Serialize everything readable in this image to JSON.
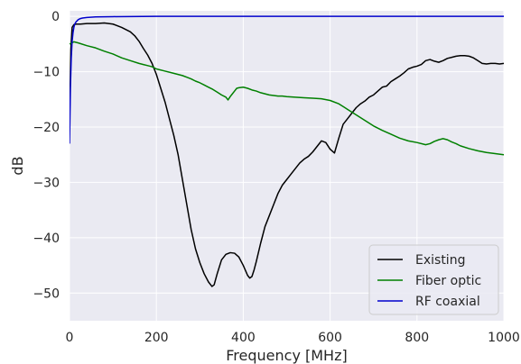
{
  "chart_data": {
    "type": "line",
    "title": "",
    "xlabel": "Frequency [MHz]",
    "ylabel": "dB",
    "xlim": [
      0,
      1000
    ],
    "ylim": [
      -55,
      1
    ],
    "xticks": [
      0,
      200,
      400,
      600,
      800,
      1000
    ],
    "yticks": [
      0,
      -10,
      -20,
      -30,
      -40,
      -50
    ],
    "xtick_labels": [
      "0",
      "200",
      "400",
      "600",
      "800",
      "1000"
    ],
    "ytick_labels": [
      "0",
      "−10",
      "−20",
      "−30",
      "−40",
      "−50"
    ],
    "grid": true,
    "legend_position": "lower-right",
    "series": [
      {
        "name": "Existing",
        "color": "#000000",
        "x": [
          0,
          3,
          6,
          10,
          15,
          25,
          40,
          60,
          80,
          100,
          120,
          140,
          150,
          160,
          170,
          180,
          190,
          200,
          210,
          220,
          230,
          240,
          250,
          260,
          270,
          280,
          290,
          300,
          310,
          320,
          328,
          333,
          340,
          350,
          360,
          370,
          380,
          390,
          400,
          410,
          415,
          420,
          425,
          430,
          440,
          450,
          460,
          470,
          480,
          490,
          500,
          510,
          520,
          530,
          540,
          550,
          560,
          570,
          580,
          590,
          600,
          610,
          620,
          630,
          640,
          650,
          660,
          670,
          680,
          690,
          700,
          710,
          720,
          730,
          740,
          750,
          760,
          770,
          780,
          790,
          800,
          810,
          820,
          830,
          840,
          850,
          860,
          870,
          880,
          890,
          900,
          910,
          920,
          930,
          940,
          950,
          960,
          970,
          980,
          990,
          1000
        ],
        "y": [
          -19,
          -6,
          -2,
          -1.5,
          -1.4,
          -1.4,
          -1.3,
          -1.3,
          -1.2,
          -1.4,
          -2,
          -2.8,
          -3.5,
          -4.5,
          -5.8,
          -7,
          -8.5,
          -10.5,
          -13,
          -15.5,
          -18.5,
          -21.5,
          -25,
          -29.5,
          -34,
          -38.5,
          -42,
          -44.5,
          -46.5,
          -48,
          -48.8,
          -48.5,
          -46.5,
          -44,
          -43,
          -42.7,
          -42.8,
          -43.5,
          -45,
          -46.8,
          -47.3,
          -47,
          -45.8,
          -44.3,
          -41,
          -38,
          -36,
          -34,
          -32,
          -30.5,
          -29.5,
          -28.5,
          -27.5,
          -26.5,
          -25.8,
          -25.3,
          -24.5,
          -23.5,
          -22.5,
          -22.8,
          -24,
          -24.7,
          -22,
          -19.5,
          -18.5,
          -17.5,
          -16.5,
          -15.8,
          -15.3,
          -14.6,
          -14.2,
          -13.5,
          -12.8,
          -12.6,
          -11.8,
          -11.3,
          -10.8,
          -10.2,
          -9.5,
          -9.2,
          -9,
          -8.7,
          -8,
          -7.8,
          -8.1,
          -8.3,
          -8,
          -7.6,
          -7.4,
          -7.2,
          -7.1,
          -7.1,
          -7.2,
          -7.5,
          -8,
          -8.5,
          -8.6,
          -8.5,
          -8.5,
          -8.6,
          -8.5
        ]
      },
      {
        "name": "Fiber optic",
        "color": "#008000",
        "x": [
          0,
          5,
          10,
          20,
          40,
          60,
          80,
          100,
          120,
          140,
          160,
          170,
          180,
          190,
          200,
          220,
          240,
          260,
          270,
          280,
          290,
          300,
          310,
          320,
          330,
          340,
          350,
          360,
          365,
          370,
          375,
          380,
          385,
          390,
          400,
          410,
          420,
          430,
          440,
          450,
          460,
          470,
          480,
          490,
          500,
          520,
          540,
          560,
          580,
          600,
          620,
          640,
          660,
          680,
          700,
          720,
          740,
          760,
          780,
          800,
          820,
          830,
          840,
          850,
          860,
          870,
          880,
          890,
          900,
          920,
          940,
          960,
          980,
          1000
        ],
        "y": [
          -5,
          -4.8,
          -4.6,
          -4.8,
          -5.3,
          -5.7,
          -6.3,
          -6.8,
          -7.5,
          -8,
          -8.5,
          -8.7,
          -8.9,
          -9.1,
          -9.5,
          -9.9,
          -10.3,
          -10.7,
          -11,
          -11.3,
          -11.7,
          -12,
          -12.4,
          -12.8,
          -13.2,
          -13.7,
          -14.2,
          -14.6,
          -15.1,
          -14.5,
          -14,
          -13.5,
          -13,
          -12.9,
          -12.8,
          -13,
          -13.3,
          -13.5,
          -13.8,
          -14,
          -14.2,
          -14.3,
          -14.4,
          -14.4,
          -14.5,
          -14.6,
          -14.7,
          -14.8,
          -14.9,
          -15.2,
          -15.8,
          -16.8,
          -17.8,
          -18.8,
          -19.8,
          -20.6,
          -21.3,
          -22,
          -22.5,
          -22.8,
          -23.2,
          -23,
          -22.6,
          -22.3,
          -22.1,
          -22.3,
          -22.7,
          -23,
          -23.4,
          -23.9,
          -24.3,
          -24.6,
          -24.8,
          -25
        ]
      },
      {
        "name": "RF coaxial",
        "color": "#0000cc",
        "x": [
          0,
          2,
          4,
          6,
          8,
          10,
          12,
          15,
          20,
          25,
          30,
          40,
          60,
          100,
          200,
          400,
          600,
          800,
          1000
        ],
        "y": [
          -23,
          -13,
          -7.5,
          -4.5,
          -3,
          -2,
          -1.4,
          -1,
          -0.6,
          -0.4,
          -0.3,
          -0.2,
          -0.1,
          -0.05,
          0,
          0,
          0,
          0,
          0
        ]
      }
    ]
  }
}
